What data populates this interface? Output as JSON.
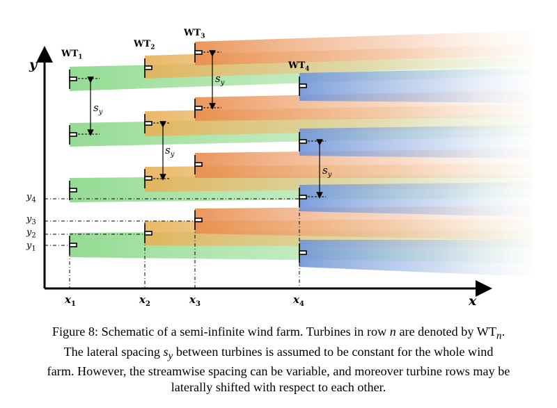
{
  "figure": {
    "axes": {
      "x_label": "x",
      "y_label": "y"
    },
    "turbine_labels": {
      "wt1": {
        "base": "WT",
        "sub": "1"
      },
      "wt2": {
        "base": "WT",
        "sub": "2"
      },
      "wt3": {
        "base": "WT",
        "sub": "3"
      },
      "wt4": {
        "base": "WT",
        "sub": "4"
      }
    },
    "x_ticks": [
      {
        "base": "x",
        "sub": "1"
      },
      {
        "base": "x",
        "sub": "2"
      },
      {
        "base": "x",
        "sub": "3"
      },
      {
        "base": "x",
        "sub": "4"
      }
    ],
    "y_ticks": [
      {
        "base": "y",
        "sub": "4"
      },
      {
        "base": "y",
        "sub": "3"
      },
      {
        "base": "y",
        "sub": "2"
      },
      {
        "base": "y",
        "sub": "1"
      }
    ],
    "spacing_label": {
      "base": "s",
      "sub": "y"
    },
    "wake_colors": {
      "row1": "#8ed98e",
      "row2": "#e8b056",
      "row3": "#e88b4a",
      "row4": "#6f93d8"
    }
  },
  "caption": {
    "line1": "Figure 8: Schematic of a semi-infinite wind farm. Turbines in row",
    "n": "n",
    "line1b": " are denoted by WT",
    "line1_sub": "n",
    "line1_end": ".",
    "line2a": "The lateral spacing ",
    "sy_base": "s",
    "sy_sub": "y",
    "line2b": " between turbines is assumed to be constant for the whole wind",
    "line3": "farm. However, the streamwise spacing can be variable, and moreover turbine rows may be",
    "line4": "laterally shifted with respect to each other."
  }
}
